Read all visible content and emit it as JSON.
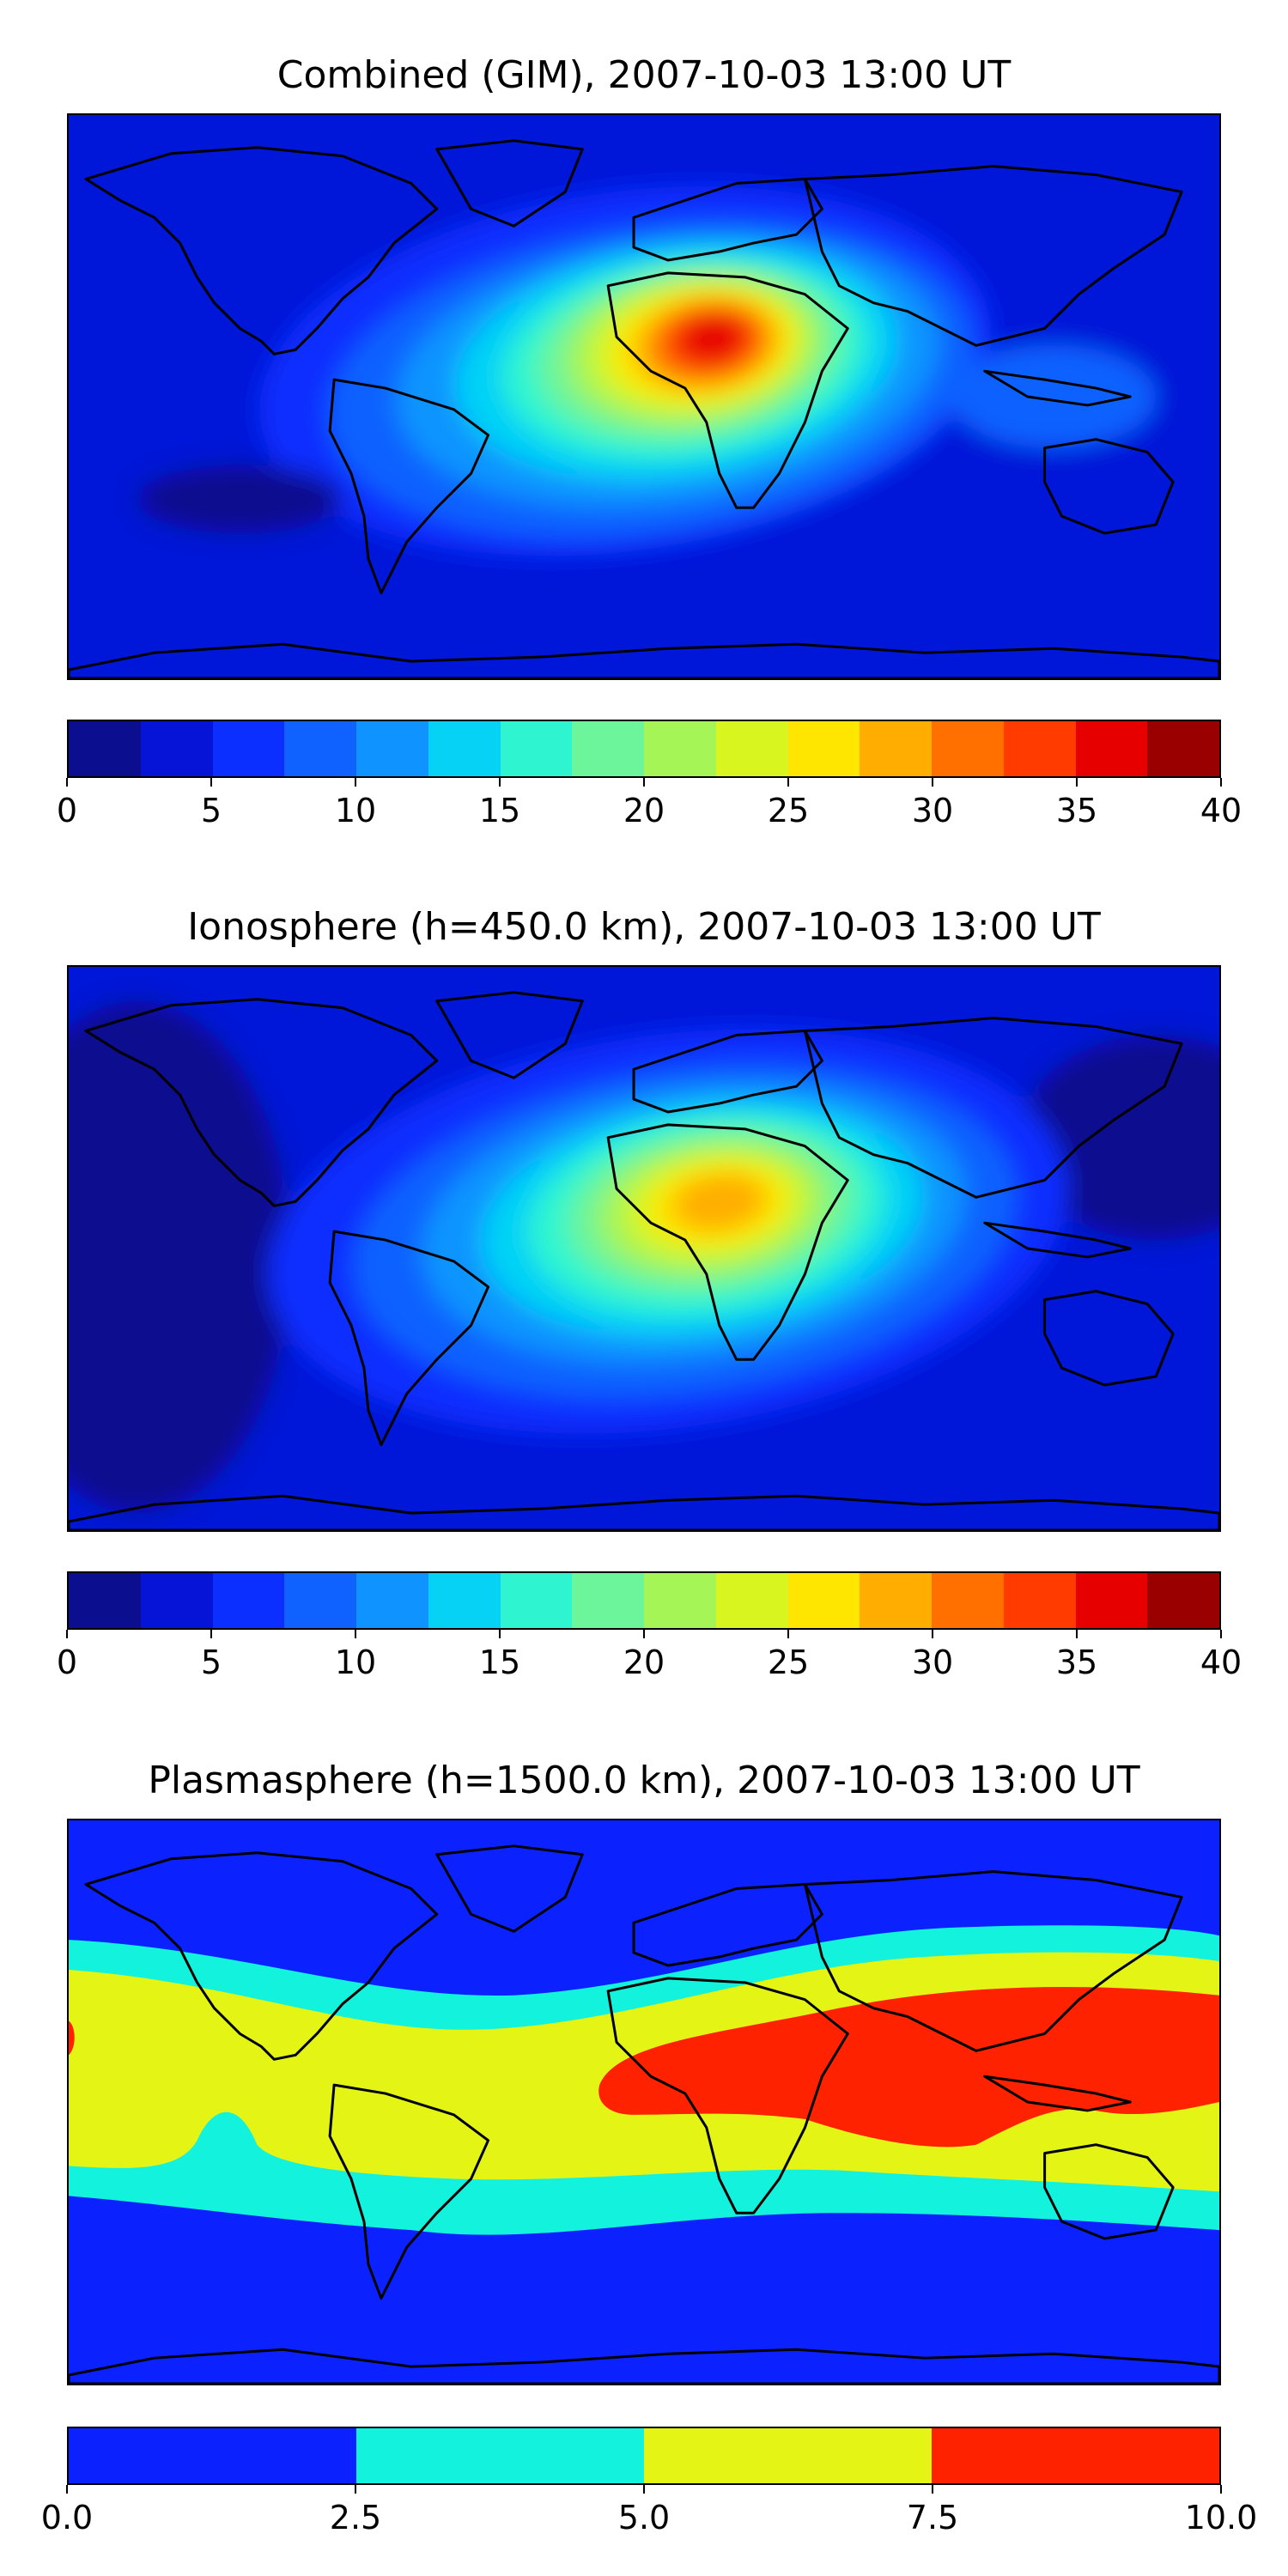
{
  "figure": {
    "palette": [
      "#0b0f8f",
      "#0614d8",
      "#0a2fff",
      "#0f62ff",
      "#0f94ff",
      "#06d2f6",
      "#2ef5d0",
      "#6cf59a",
      "#a6f557",
      "#d9f51f",
      "#ffe600",
      "#ffae00",
      "#ff7000",
      "#ff3b00",
      "#e60000",
      "#9b0000"
    ],
    "plasma_palette": [
      "#0b22ff",
      "#12f2dc",
      "#e4f516",
      "#ff2200"
    ],
    "coastline_color": "#000000"
  },
  "chart_data": [
    {
      "type": "heatmap",
      "name": "combined",
      "title": "Combined (GIM), 2007-10-03 13:00 UT",
      "colorbar": {
        "range": [
          0,
          40
        ],
        "levels": [
          0,
          2.5,
          5,
          7.5,
          10,
          12.5,
          15,
          17.5,
          20,
          22.5,
          25,
          27.5,
          30,
          32.5,
          35,
          37.5,
          40
        ],
        "tick_labels": [
          "0",
          "5",
          "10",
          "15",
          "20",
          "25",
          "30",
          "35",
          "40"
        ]
      },
      "peak_region": "Africa / Middle East",
      "max_level": 37.5
    },
    {
      "type": "heatmap",
      "name": "ionosphere",
      "title": "Ionosphere  (h=450.0 km), 2007-10-03 13:00 UT",
      "colorbar": {
        "range": [
          0,
          40
        ],
        "levels": [
          0,
          2.5,
          5,
          7.5,
          10,
          12.5,
          15,
          17.5,
          20,
          22.5,
          25,
          27.5,
          30,
          32.5,
          35,
          37.5,
          40
        ],
        "tick_labels": [
          "0",
          "5",
          "10",
          "15",
          "20",
          "25",
          "30",
          "35",
          "40"
        ]
      },
      "peak_region": "Africa",
      "max_level": 30
    },
    {
      "type": "heatmap",
      "name": "plasmasphere",
      "title": "Plasmasphere (h=1500.0 km), 2007-10-03 13:00 UT",
      "colorbar": {
        "range": [
          0,
          10
        ],
        "levels": [
          0,
          2.5,
          5,
          7.5,
          10
        ],
        "tick_labels": [
          "0.0",
          "2.5",
          "5.0",
          "7.5",
          "10.0"
        ]
      },
      "peak_region": "Asia / Indian Ocean",
      "max_level": 10
    }
  ]
}
